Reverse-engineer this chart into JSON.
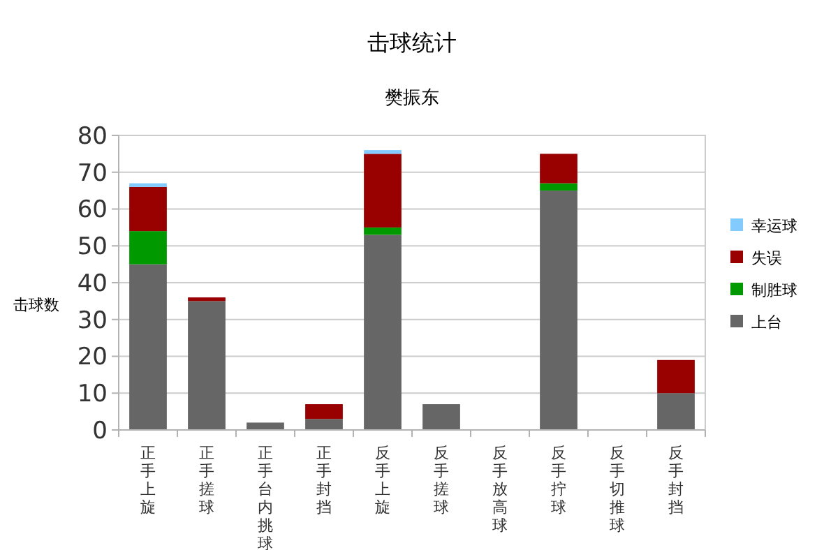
{
  "chart_data": {
    "type": "bar",
    "title": "击球统计",
    "subtitle": "樊振东",
    "ylabel": "击球数",
    "stacked": true,
    "categories": [
      "正手上旋",
      "正手搓球",
      "正手台内挑球",
      "正手封挡",
      "反手上旋",
      "反手搓球",
      "反手放高球",
      "反手拧球",
      "反手切推球",
      "反手封挡"
    ],
    "series": [
      {
        "name": "上台",
        "color": "#666666",
        "values": [
          45,
          35,
          2,
          3,
          53,
          7,
          0,
          65,
          0,
          10
        ]
      },
      {
        "name": "制胜球",
        "color": "#009900",
        "values": [
          9,
          0,
          0,
          0,
          2,
          0,
          0,
          2,
          0,
          0
        ]
      },
      {
        "name": "失误",
        "color": "#990000",
        "values": [
          12,
          1,
          0,
          4,
          20,
          0,
          0,
          8,
          0,
          9
        ]
      },
      {
        "name": "幸运球",
        "color": "#83caff",
        "values": [
          1,
          0,
          0,
          0,
          1,
          0,
          0,
          0,
          0,
          0
        ]
      }
    ],
    "ylim": [
      0,
      80
    ],
    "yticks": [
      0,
      10,
      20,
      30,
      40,
      50,
      60,
      70,
      80
    ],
    "grid": "y",
    "legend": "right"
  }
}
